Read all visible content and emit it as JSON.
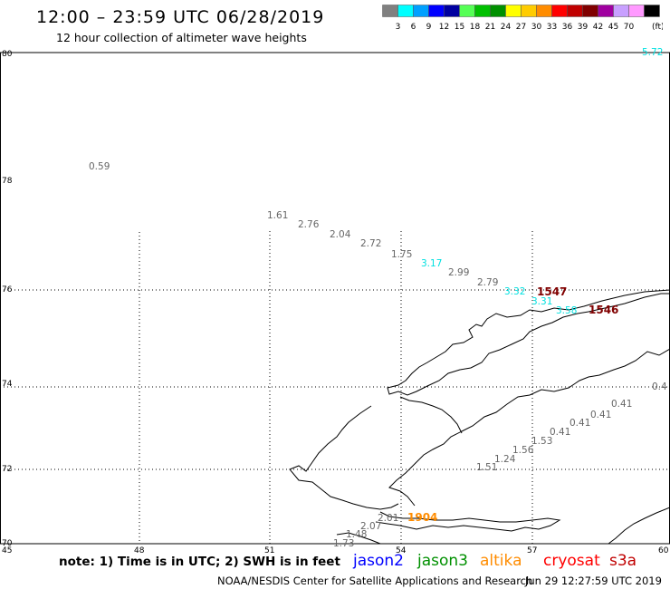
{
  "header": {
    "title": "12:00 – 23:59 UTC 06/28/2019",
    "subtitle": "12 hour collection of altimeter wave heights"
  },
  "legend": {
    "unit": "(ft)",
    "items": [
      {
        "label": "",
        "color": "#808080"
      },
      {
        "label": "3",
        "color": "#00ffff"
      },
      {
        "label": "6",
        "color": "#00a0ff"
      },
      {
        "label": "9",
        "color": "#0000ff"
      },
      {
        "label": "12",
        "color": "#0000a0"
      },
      {
        "label": "15",
        "color": "#55ff55"
      },
      {
        "label": "18",
        "color": "#00c000"
      },
      {
        "label": "21",
        "color": "#009000"
      },
      {
        "label": "24",
        "color": "#ffff00"
      },
      {
        "label": "27",
        "color": "#ffcc00"
      },
      {
        "label": "30",
        "color": "#ff8c00"
      },
      {
        "label": "33",
        "color": "#ff0000"
      },
      {
        "label": "36",
        "color": "#c00000"
      },
      {
        "label": "39",
        "color": "#800000"
      },
      {
        "label": "42",
        "color": "#a000a0"
      },
      {
        "label": "45",
        "color": "#c8a0ff"
      },
      {
        "label": "70",
        "color": "#ff99ff"
      },
      {
        "label": "",
        "color": "#000000"
      }
    ]
  },
  "axes": {
    "lat_labels": [
      "80",
      "78",
      "76",
      "74",
      "72",
      "70"
    ],
    "lon_labels": [
      "45",
      "48",
      "51",
      "54",
      "57",
      "60"
    ]
  },
  "observations": [
    {
      "text": "0.59",
      "color": "#666666"
    },
    {
      "text": "1.61",
      "color": "#666666"
    },
    {
      "text": "2.76",
      "color": "#666666"
    },
    {
      "text": "2.04",
      "color": "#666666"
    },
    {
      "text": "2.72",
      "color": "#666666"
    },
    {
      "text": "1.75",
      "color": "#666666"
    },
    {
      "text": "3.17",
      "color": "#00e0e0"
    },
    {
      "text": "2.99",
      "color": "#666666"
    },
    {
      "text": "2.79",
      "color": "#666666"
    },
    {
      "text": "3.32",
      "color": "#00e0e0"
    },
    {
      "text": "3.31",
      "color": "#00e0e0"
    },
    {
      "text": "3.58",
      "color": "#00e0e0"
    },
    {
      "text": "5.72",
      "color": "#00e0e0"
    },
    {
      "text": "0.4",
      "color": "#666666"
    },
    {
      "text": "0.41",
      "color": "#666666"
    },
    {
      "text": "0.41",
      "color": "#666666"
    },
    {
      "text": "0.41",
      "color": "#666666"
    },
    {
      "text": "0.41",
      "color": "#666666"
    },
    {
      "text": "1.53",
      "color": "#666666"
    },
    {
      "text": "1.56",
      "color": "#666666"
    },
    {
      "text": "1.24",
      "color": "#666666"
    },
    {
      "text": "1.51",
      "color": "#666666"
    },
    {
      "text": "2.01",
      "color": "#666666"
    },
    {
      "text": "2.07",
      "color": "#666666"
    },
    {
      "text": "1.48",
      "color": "#666666"
    },
    {
      "text": "1.73",
      "color": "#666666"
    }
  ],
  "pass_times": [
    {
      "text": "1547",
      "color": "#800000"
    },
    {
      "text": "1546",
      "color": "#800000"
    },
    {
      "text": "1904",
      "color": "#ff8c00"
    }
  ],
  "footer": {
    "note": "note:  1) Time is in UTC;  2) SWH is in feet",
    "satellites": [
      {
        "name": "jason2",
        "color": "#0000ff"
      },
      {
        "name": "jason3",
        "color": "#009000"
      },
      {
        "name": "altika",
        "color": "#ff8c00"
      },
      {
        "name": "cryosat",
        "color": "#ff0000"
      },
      {
        "name": "s3a",
        "color": "#c00000"
      }
    ],
    "credit": "NOAA/NESDIS Center for Satellite Applications and Research",
    "timestamp": "Jun 29 12:27:59 UTC 2019"
  }
}
